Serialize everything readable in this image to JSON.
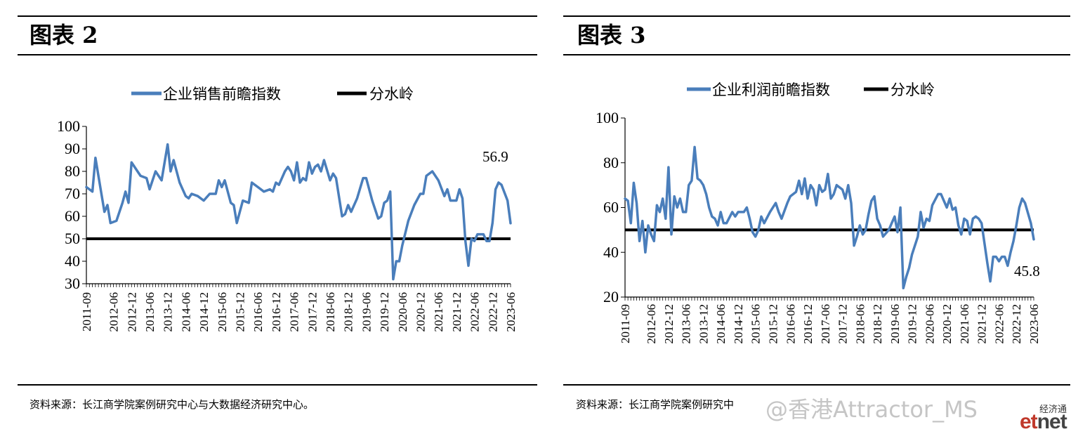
{
  "figures": [
    {
      "title": "图表 2",
      "source": "资料来源：长江商学院案例研究中心与大数据经济研究中心。"
    },
    {
      "title": "图表 3",
      "source": "资料来源：长江商学院案例研究中"
    }
  ],
  "watermark": {
    "text": "@香港Attractor_MS",
    "logo_top": "经济通",
    "logo_bottom": "etnet",
    "logo_colors": {
      "et": "#c0392b",
      "net": "#444444"
    }
  },
  "chart_data": [
    {
      "type": "line",
      "title": "",
      "xlabel": "",
      "ylabel": "",
      "ylim": [
        30,
        100
      ],
      "yticks": [
        30,
        40,
        50,
        60,
        70,
        80,
        90,
        100
      ],
      "xlim": [
        "2011-09",
        "2023-06"
      ],
      "xticks": [
        "2011-09",
        "2012-06",
        "2012-12",
        "2013-06",
        "2013-12",
        "2014-06",
        "2014-12",
        "2015-06",
        "2015-12",
        "2016-06",
        "2016-12",
        "2017-06",
        "2017-12",
        "2018-06",
        "2018-12",
        "2019-06",
        "2019-12",
        "2020-06",
        "2020-12",
        "2021-06",
        "2021-12",
        "2022-06",
        "2022-12",
        "2023-06"
      ],
      "grid": false,
      "legend_position": "top",
      "annotation": {
        "text": "56.9",
        "x": "2023-06",
        "y": 56.9
      },
      "colors": {
        "index": "#4a7ebb",
        "threshold": "#000000"
      },
      "series": [
        {
          "name": "企业销售前瞻指数",
          "points": [
            [
              "2011-09",
              73
            ],
            [
              "2011-11",
              71
            ],
            [
              "2011-12",
              86
            ],
            [
              "2012-02",
              70
            ],
            [
              "2012-03",
              62
            ],
            [
              "2012-04",
              65
            ],
            [
              "2012-05",
              57
            ],
            [
              "2012-07",
              58
            ],
            [
              "2012-09",
              66
            ],
            [
              "2012-10",
              71
            ],
            [
              "2012-11",
              66
            ],
            [
              "2012-12",
              84
            ],
            [
              "2013-02",
              80
            ],
            [
              "2013-03",
              78
            ],
            [
              "2013-05",
              77
            ],
            [
              "2013-06",
              72
            ],
            [
              "2013-08",
              80
            ],
            [
              "2013-10",
              76
            ],
            [
              "2013-12",
              92
            ],
            [
              "2014-01",
              80
            ],
            [
              "2014-02",
              85
            ],
            [
              "2014-04",
              75
            ],
            [
              "2014-06",
              69
            ],
            [
              "2014-07",
              68
            ],
            [
              "2014-08",
              70
            ],
            [
              "2014-10",
              69
            ],
            [
              "2014-12",
              67
            ],
            [
              "2015-02",
              70
            ],
            [
              "2015-04",
              70
            ],
            [
              "2015-05",
              76
            ],
            [
              "2015-06",
              73
            ],
            [
              "2015-07",
              76
            ],
            [
              "2015-09",
              66
            ],
            [
              "2015-10",
              65
            ],
            [
              "2015-11",
              57
            ],
            [
              "2016-01",
              67
            ],
            [
              "2016-03",
              66
            ],
            [
              "2016-04",
              75
            ],
            [
              "2016-06",
              73
            ],
            [
              "2016-08",
              71
            ],
            [
              "2016-10",
              72
            ],
            [
              "2016-11",
              71
            ],
            [
              "2016-12",
              75
            ],
            [
              "2017-01",
              74
            ],
            [
              "2017-03",
              80
            ],
            [
              "2017-04",
              82
            ],
            [
              "2017-05",
              80
            ],
            [
              "2017-06",
              76
            ],
            [
              "2017-07",
              84
            ],
            [
              "2017-08",
              75
            ],
            [
              "2017-09",
              77
            ],
            [
              "2017-10",
              76
            ],
            [
              "2017-11",
              84
            ],
            [
              "2017-12",
              79
            ],
            [
              "2018-01",
              82
            ],
            [
              "2018-02",
              83
            ],
            [
              "2018-03",
              80
            ],
            [
              "2018-04",
              85
            ],
            [
              "2018-06",
              76
            ],
            [
              "2018-07",
              79
            ],
            [
              "2018-08",
              77
            ],
            [
              "2018-10",
              60
            ],
            [
              "2018-11",
              61
            ],
            [
              "2018-12",
              65
            ],
            [
              "2019-01",
              62
            ],
            [
              "2019-03",
              68
            ],
            [
              "2019-05",
              77
            ],
            [
              "2019-06",
              77
            ],
            [
              "2019-08",
              67
            ],
            [
              "2019-10",
              59
            ],
            [
              "2019-11",
              60
            ],
            [
              "2019-12",
              66
            ],
            [
              "2020-01",
              67
            ],
            [
              "2020-02",
              71
            ],
            [
              "2020-03",
              32
            ],
            [
              "2020-04",
              40
            ],
            [
              "2020-05",
              40
            ],
            [
              "2020-06",
              47
            ],
            [
              "2020-08",
              58
            ],
            [
              "2020-10",
              65
            ],
            [
              "2020-12",
              70
            ],
            [
              "2021-01",
              70
            ],
            [
              "2021-02",
              78
            ],
            [
              "2021-04",
              80
            ],
            [
              "2021-06",
              76
            ],
            [
              "2021-08",
              69
            ],
            [
              "2021-09",
              72
            ],
            [
              "2021-10",
              67
            ],
            [
              "2021-12",
              67
            ],
            [
              "2022-01",
              72
            ],
            [
              "2022-02",
              68
            ],
            [
              "2022-03",
              49
            ],
            [
              "2022-04",
              38
            ],
            [
              "2022-05",
              50
            ],
            [
              "2022-06",
              49
            ],
            [
              "2022-07",
              52
            ],
            [
              "2022-09",
              52
            ],
            [
              "2022-10",
              49
            ],
            [
              "2022-11",
              49
            ],
            [
              "2022-12",
              57
            ],
            [
              "2023-01",
              72
            ],
            [
              "2023-02",
              75
            ],
            [
              "2023-03",
              74
            ],
            [
              "2023-05",
              67
            ],
            [
              "2023-06",
              56.9
            ]
          ]
        },
        {
          "name": "分水岭",
          "points": [
            [
              "2011-09",
              50
            ],
            [
              "2023-06",
              50
            ]
          ]
        }
      ]
    },
    {
      "type": "line",
      "title": "",
      "xlabel": "",
      "ylabel": "",
      "ylim": [
        20,
        100
      ],
      "yticks": [
        20,
        40,
        60,
        80,
        100
      ],
      "xlim": [
        "2011-09",
        "2023-06"
      ],
      "xticks": [
        "2011-09",
        "2012-06",
        "2012-12",
        "2013-06",
        "2013-12",
        "2014-06",
        "2014-12",
        "2015-06",
        "2015-12",
        "2016-06",
        "2016-12",
        "2017-06",
        "2017-12",
        "2018-06",
        "2018-12",
        "2019-06",
        "2019-12",
        "2020-06",
        "2020-12",
        "2021-06",
        "2021-12",
        "2022-06",
        "2022-12",
        "2023-06"
      ],
      "grid": false,
      "legend_position": "top",
      "annotation": {
        "text": "45.8",
        "x": "2023-06",
        "y": 45.8
      },
      "colors": {
        "index": "#4a7ebb",
        "threshold": "#000000"
      },
      "series": [
        {
          "name": "企业利润前瞻指数",
          "points": [
            [
              "2011-09",
              64
            ],
            [
              "2011-10",
              63
            ],
            [
              "2011-11",
              53
            ],
            [
              "2011-12",
              71
            ],
            [
              "2012-01",
              62
            ],
            [
              "2012-02",
              45
            ],
            [
              "2012-03",
              54
            ],
            [
              "2012-04",
              40
            ],
            [
              "2012-05",
              52
            ],
            [
              "2012-06",
              48
            ],
            [
              "2012-07",
              45
            ],
            [
              "2012-08",
              61
            ],
            [
              "2012-09",
              58
            ],
            [
              "2012-10",
              64
            ],
            [
              "2012-11",
              55
            ],
            [
              "2012-12",
              78
            ],
            [
              "2013-01",
              48
            ],
            [
              "2013-02",
              65
            ],
            [
              "2013-03",
              60
            ],
            [
              "2013-04",
              64
            ],
            [
              "2013-05",
              58
            ],
            [
              "2013-06",
              58
            ],
            [
              "2013-07",
              70
            ],
            [
              "2013-08",
              72
            ],
            [
              "2013-09",
              87
            ],
            [
              "2013-10",
              73
            ],
            [
              "2013-11",
              72
            ],
            [
              "2013-12",
              70
            ],
            [
              "2014-01",
              66
            ],
            [
              "2014-02",
              60
            ],
            [
              "2014-03",
              56
            ],
            [
              "2014-04",
              55
            ],
            [
              "2014-05",
              52
            ],
            [
              "2014-06",
              58
            ],
            [
              "2014-07",
              53
            ],
            [
              "2014-08",
              53
            ],
            [
              "2014-10",
              58
            ],
            [
              "2014-11",
              56
            ],
            [
              "2014-12",
              58
            ],
            [
              "2015-02",
              58
            ],
            [
              "2015-03",
              60
            ],
            [
              "2015-04",
              55
            ],
            [
              "2015-05",
              49
            ],
            [
              "2015-06",
              47
            ],
            [
              "2015-07",
              50
            ],
            [
              "2015-08",
              56
            ],
            [
              "2015-09",
              53
            ],
            [
              "2015-11",
              58
            ],
            [
              "2016-01",
              62
            ],
            [
              "2016-02",
              58
            ],
            [
              "2016-03",
              55
            ],
            [
              "2016-05",
              62
            ],
            [
              "2016-06",
              65
            ],
            [
              "2016-08",
              67
            ],
            [
              "2016-09",
              72
            ],
            [
              "2016-10",
              66
            ],
            [
              "2016-11",
              73
            ],
            [
              "2016-12",
              64
            ],
            [
              "2017-01",
              70
            ],
            [
              "2017-02",
              68
            ],
            [
              "2017-03",
              61
            ],
            [
              "2017-04",
              70
            ],
            [
              "2017-05",
              67
            ],
            [
              "2017-06",
              68
            ],
            [
              "2017-07",
              75
            ],
            [
              "2017-08",
              64
            ],
            [
              "2017-09",
              66
            ],
            [
              "2017-10",
              70
            ],
            [
              "2017-12",
              68
            ],
            [
              "2018-01",
              64
            ],
            [
              "2018-02",
              70
            ],
            [
              "2018-03",
              62
            ],
            [
              "2018-04",
              43
            ],
            [
              "2018-05",
              47
            ],
            [
              "2018-06",
              52
            ],
            [
              "2018-07",
              48
            ],
            [
              "2018-08",
              50
            ],
            [
              "2018-09",
              57
            ],
            [
              "2018-10",
              63
            ],
            [
              "2018-11",
              65
            ],
            [
              "2018-12",
              55
            ],
            [
              "2019-01",
              52
            ],
            [
              "2019-02",
              47
            ],
            [
              "2019-04",
              50
            ],
            [
              "2019-05",
              53
            ],
            [
              "2019-06",
              56
            ],
            [
              "2019-07",
              49
            ],
            [
              "2019-08",
              60
            ],
            [
              "2019-09",
              24
            ],
            [
              "2019-10",
              29
            ],
            [
              "2019-11",
              33
            ],
            [
              "2019-12",
              39
            ],
            [
              "2020-02",
              47
            ],
            [
              "2020-03",
              58
            ],
            [
              "2020-04",
              51
            ],
            [
              "2020-05",
              55
            ],
            [
              "2020-06",
              54
            ],
            [
              "2020-07",
              61
            ],
            [
              "2020-09",
              66
            ],
            [
              "2020-10",
              66
            ],
            [
              "2020-12",
              60
            ],
            [
              "2021-01",
              64
            ],
            [
              "2021-02",
              59
            ],
            [
              "2021-03",
              60
            ],
            [
              "2021-04",
              52
            ],
            [
              "2021-05",
              48
            ],
            [
              "2021-06",
              55
            ],
            [
              "2021-07",
              54
            ],
            [
              "2021-08",
              48
            ],
            [
              "2021-09",
              55
            ],
            [
              "2021-10",
              56
            ],
            [
              "2021-11",
              55
            ],
            [
              "2021-12",
              53
            ],
            [
              "2022-02",
              35
            ],
            [
              "2022-03",
              27
            ],
            [
              "2022-04",
              38
            ],
            [
              "2022-05",
              38
            ],
            [
              "2022-06",
              36
            ],
            [
              "2022-07",
              38
            ],
            [
              "2022-08",
              38
            ],
            [
              "2022-09",
              34
            ],
            [
              "2022-10",
              40
            ],
            [
              "2022-11",
              45
            ],
            [
              "2022-12",
              52
            ],
            [
              "2023-01",
              60
            ],
            [
              "2023-02",
              64
            ],
            [
              "2023-03",
              62
            ],
            [
              "2023-05",
              53
            ],
            [
              "2023-06",
              45.8
            ]
          ]
        },
        {
          "name": "分水岭",
          "points": [
            [
              "2011-09",
              50
            ],
            [
              "2023-06",
              50
            ]
          ]
        }
      ]
    }
  ]
}
